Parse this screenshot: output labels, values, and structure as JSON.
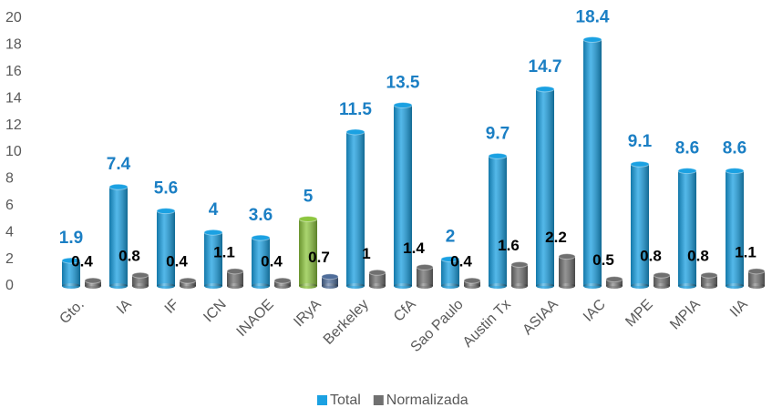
{
  "chart_data": {
    "type": "bar",
    "categories": [
      "Gto.",
      "IA",
      "IF",
      "ICN",
      "INAOE",
      "IRyA",
      "Berkeley",
      "CfA",
      "Sao Paulo",
      "Austin Tx",
      "ASIAA",
      "IAC",
      "MPE",
      "MPIA",
      "IIA"
    ],
    "series": [
      {
        "name": "Total",
        "color": "#1ba1e2",
        "label_color": "#1b7fc4",
        "colors": [
          "#1ba1e2",
          "#1ba1e2",
          "#1ba1e2",
          "#1ba1e2",
          "#1ba1e2",
          "#8dc63f",
          "#1ba1e2",
          "#1ba1e2",
          "#1ba1e2",
          "#1ba1e2",
          "#1ba1e2",
          "#1ba1e2",
          "#1ba1e2",
          "#1ba1e2",
          "#1ba1e2"
        ],
        "values": [
          1.9,
          7.4,
          5.6,
          4,
          3.6,
          5,
          11.5,
          13.5,
          2,
          9.7,
          14.7,
          18.4,
          9.1,
          8.6,
          8.6
        ]
      },
      {
        "name": "Normalizada",
        "color": "#707070",
        "label_color": "#000000",
        "colors": [
          "#707070",
          "#707070",
          "#707070",
          "#707070",
          "#707070",
          "#4f6d9a",
          "#707070",
          "#707070",
          "#707070",
          "#707070",
          "#707070",
          "#707070",
          "#707070",
          "#707070",
          "#707070"
        ],
        "values": [
          0.4,
          0.8,
          0.4,
          1.1,
          0.4,
          0.7,
          1,
          1.4,
          0.4,
          1.6,
          2.2,
          0.5,
          0.8,
          0.8,
          1.1
        ]
      }
    ],
    "ylim": [
      0,
      20
    ],
    "yticks": [
      0,
      2,
      4,
      6,
      8,
      10,
      12,
      14,
      16,
      18,
      20
    ],
    "grid": false,
    "legend": "bottom"
  }
}
